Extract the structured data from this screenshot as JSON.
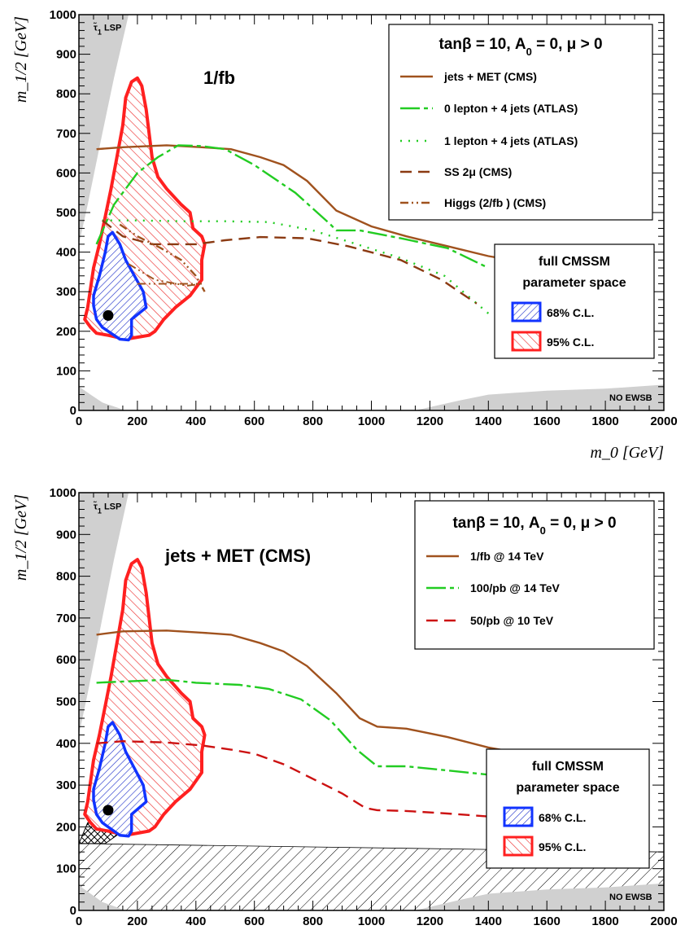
{
  "chart_data": [
    {
      "type": "line",
      "panel": "top",
      "xlabel": "m_0 [GeV]",
      "ylabel": "m_1/2 [GeV]",
      "xlim": [
        0,
        2000
      ],
      "ylim": [
        0,
        1000
      ],
      "xticks": [
        "0",
        "200",
        "400",
        "600",
        "800",
        "1000",
        "1200",
        "1400",
        "1600",
        "1800",
        "2000"
      ],
      "yticks": [
        "0",
        "100",
        "200",
        "300",
        "400",
        "500",
        "600",
        "700",
        "800",
        "900",
        "1000"
      ],
      "header": "tanβ = 10, A",
      "header_sub": "0",
      "header_tail": " = 0, μ > 0",
      "label_main": "1/fb",
      "label_lsp": "τ̃",
      "label_lsp_sub": "1",
      "label_lsp_tail": " LSP",
      "label_noewsb": "NO EWSB",
      "cl_title_1": "full CMSSM",
      "cl_title_2": "parameter space",
      "cl_68": "68% C.L.",
      "cl_95": "95% C.L.",
      "best_fit": {
        "x": 100,
        "y": 240
      },
      "series": [
        {
          "name": "jets + MET (CMS)",
          "color": "#a0521e",
          "dash": "",
          "points": [
            [
              60,
              660
            ],
            [
              150,
              665
            ],
            [
              300,
              670
            ],
            [
              420,
              665
            ],
            [
              520,
              660
            ],
            [
              620,
              640
            ],
            [
              700,
              620
            ],
            [
              780,
              580
            ],
            [
              880,
              505
            ],
            [
              1000,
              465
            ],
            [
              1120,
              440
            ],
            [
              1260,
              415
            ],
            [
              1400,
              390
            ],
            [
              1560,
              370
            ]
          ]
        },
        {
          "name": "0 lepton + 4 jets (ATLAS)",
          "color": "#22cc22",
          "dash": "24,5,5,5",
          "points": [
            [
              60,
              420
            ],
            [
              120,
              520
            ],
            [
              200,
              600
            ],
            [
              270,
              640
            ],
            [
              340,
              670
            ],
            [
              420,
              668
            ],
            [
              500,
              660
            ],
            [
              600,
              620
            ],
            [
              740,
              550
            ],
            [
              860,
              470
            ],
            [
              880,
              455
            ],
            [
              960,
              455
            ],
            [
              1100,
              435
            ],
            [
              1260,
              410
            ],
            [
              1400,
              360
            ]
          ]
        },
        {
          "name": "1 lepton + 4 jets (ATLAS)",
          "color": "#22cc22",
          "dash": "2,8",
          "points": [
            [
              80,
              480
            ],
            [
              200,
              480
            ],
            [
              350,
              478
            ],
            [
              500,
              478
            ],
            [
              650,
              476
            ],
            [
              800,
              455
            ],
            [
              950,
              420
            ],
            [
              1100,
              385
            ],
            [
              1250,
              340
            ],
            [
              1400,
              245
            ]
          ]
        },
        {
          "name": "SS 2μ (CMS)",
          "color": "#8b3a12",
          "dash": "14,8",
          "points": [
            [
              80,
              480
            ],
            [
              150,
              440
            ],
            [
              250,
              420
            ],
            [
              400,
              420
            ],
            [
              500,
              430
            ],
            [
              620,
              438
            ],
            [
              780,
              435
            ],
            [
              920,
              415
            ],
            [
              1100,
              380
            ],
            [
              1240,
              330
            ],
            [
              1360,
              270
            ]
          ]
        },
        {
          "name": "Higgs (2/fb ) (CMS)",
          "color": "#a0521e",
          "dash": "10,4,2,4,2,4",
          "points": [
            [
              140,
              470
            ],
            [
              200,
              440
            ],
            [
              280,
              410
            ],
            [
              350,
              380
            ],
            [
              400,
              340
            ],
            [
              430,
              300
            ]
          ]
        }
      ],
      "extra_lines": [
        {
          "color": "#a0521e",
          "dash": "10,4,2,4,2,4",
          "points": [
            [
              170,
              370
            ],
            [
              260,
              330
            ],
            [
              370,
              315
            ],
            [
              420,
              320
            ]
          ]
        },
        {
          "color": "#a0521e",
          "dash": "10,4,2,4,2,4",
          "points": [
            [
              200,
              320
            ],
            [
              280,
              320
            ],
            [
              350,
              320
            ],
            [
              420,
              320
            ]
          ]
        }
      ]
    },
    {
      "type": "line",
      "panel": "bottom",
      "xlabel": "m_0 [GeV]",
      "ylabel": "m_1/2 [GeV]",
      "xlim": [
        0,
        2000
      ],
      "ylim": [
        0,
        1000
      ],
      "xticks": [
        "0",
        "200",
        "400",
        "600",
        "800",
        "1000",
        "1200",
        "1400",
        "1600",
        "1800",
        "2000"
      ],
      "yticks": [
        "0",
        "100",
        "200",
        "300",
        "400",
        "500",
        "600",
        "700",
        "800",
        "900",
        "1000"
      ],
      "header": "tanβ = 10, A",
      "header_sub": "0",
      "header_tail": " = 0, μ > 0",
      "label_main": "jets + MET (CMS)",
      "label_lsp": "τ̃",
      "label_lsp_sub": "1",
      "label_lsp_tail": " LSP",
      "label_noewsb": "NO EWSB",
      "cl_title_1": "full CMSSM",
      "cl_title_2": "parameter space",
      "cl_68": "68% C.L.",
      "cl_95": "95% C.L.",
      "best_fit": {
        "x": 100,
        "y": 240
      },
      "series": [
        {
          "name": "1/fb @ 14 TeV",
          "color": "#a0521e",
          "dash": "",
          "points": [
            [
              60,
              660
            ],
            [
              150,
              668
            ],
            [
              300,
              670
            ],
            [
              420,
              665
            ],
            [
              520,
              660
            ],
            [
              620,
              640
            ],
            [
              700,
              620
            ],
            [
              780,
              585
            ],
            [
              880,
              520
            ],
            [
              960,
              460
            ],
            [
              1020,
              440
            ],
            [
              1120,
              435
            ],
            [
              1260,
              415
            ],
            [
              1400,
              390
            ],
            [
              1560,
              370
            ]
          ]
        },
        {
          "name": "100/pb @ 14 TeV",
          "color": "#22cc22",
          "dash": "24,5,5,5",
          "points": [
            [
              60,
              545
            ],
            [
              150,
              548
            ],
            [
              300,
              552
            ],
            [
              400,
              545
            ],
            [
              550,
              540
            ],
            [
              650,
              530
            ],
            [
              760,
              505
            ],
            [
              860,
              455
            ],
            [
              950,
              385
            ],
            [
              1020,
              345
            ],
            [
              1120,
              345
            ],
            [
              1260,
              335
            ],
            [
              1400,
              325
            ],
            [
              1560,
              318
            ]
          ]
        },
        {
          "name": "50/pb @ 10 TeV",
          "color": "#cc1111",
          "dash": "14,8",
          "points": [
            [
              60,
              400
            ],
            [
              150,
              405
            ],
            [
              300,
              402
            ],
            [
              420,
              395
            ],
            [
              520,
              385
            ],
            [
              600,
              375
            ],
            [
              700,
              350
            ],
            [
              800,
              315
            ],
            [
              900,
              280
            ],
            [
              980,
              245
            ],
            [
              1020,
              240
            ],
            [
              1120,
              238
            ],
            [
              1260,
              232
            ],
            [
              1400,
              225
            ],
            [
              1560,
              222
            ]
          ]
        }
      ],
      "extra_lines": []
    }
  ]
}
